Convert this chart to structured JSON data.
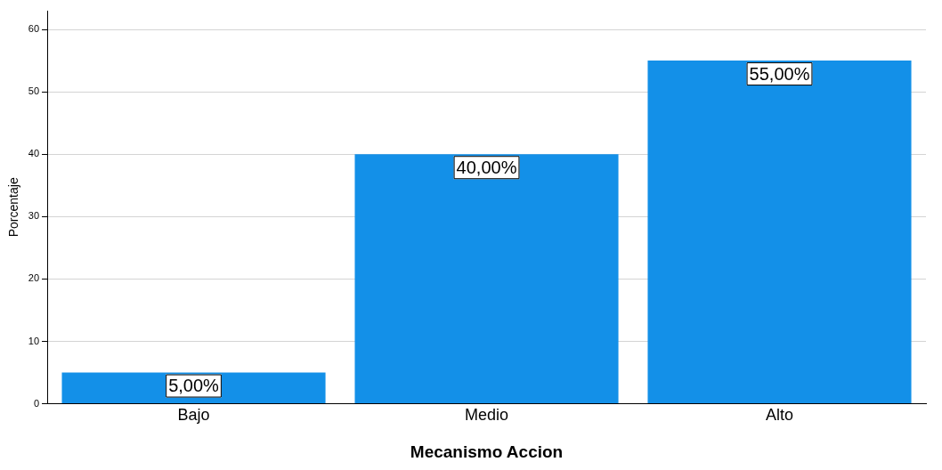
{
  "chart_data": {
    "type": "bar",
    "xlabel": "Mecanismo Accion",
    "ylabel": "Porcentaje",
    "categories": [
      "Bajo",
      "Medio",
      "Alto"
    ],
    "values": [
      5,
      40,
      55
    ],
    "color": "#1390e8",
    "value_labels": [
      "5,00%",
      "40,00%",
      "55,00%"
    ],
    "ylim": [
      0,
      63
    ],
    "yticks": [
      0,
      10,
      20,
      30,
      40,
      50,
      60
    ],
    "grid": "y",
    "legend": false
  }
}
